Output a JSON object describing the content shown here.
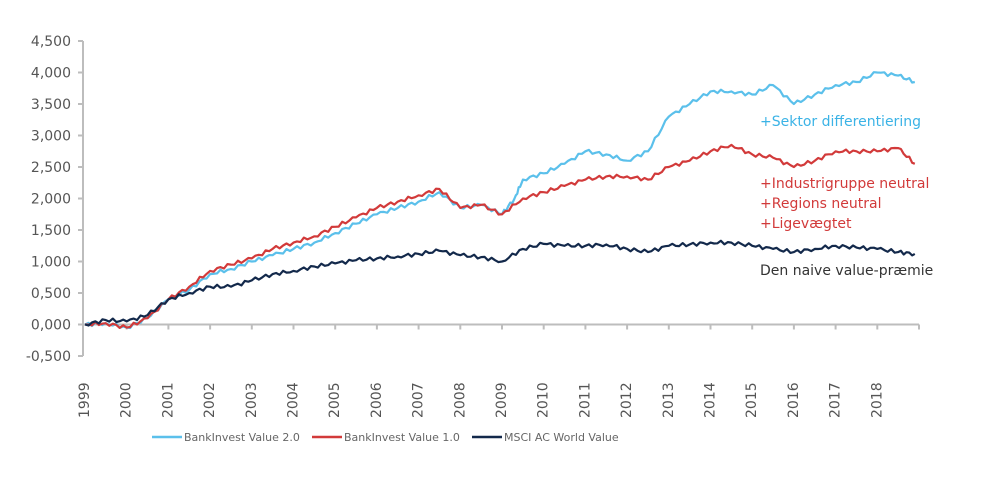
{
  "chart_data": {
    "type": "line",
    "title": "",
    "xlabel": "",
    "ylabel": "",
    "ylim": [
      -0.5,
      4.5
    ],
    "xlim": [
      1999,
      2019
    ],
    "grid": false,
    "legend_position": "bottom",
    "y_ticks": [
      "-0,500",
      "0,000",
      "0,500",
      "1,000",
      "1,500",
      "2,000",
      "2,500",
      "3,000",
      "3,500",
      "4,000",
      "4,500"
    ],
    "y_tick_values": [
      -0.5,
      0,
      0.5,
      1,
      1.5,
      2,
      2.5,
      3,
      3.5,
      4,
      4.5
    ],
    "x_ticks": [
      "1999",
      "2000",
      "2001",
      "2002",
      "2003",
      "2004",
      "2005",
      "2006",
      "2007",
      "2008",
      "2009",
      "2010",
      "2011",
      "2012",
      "2013",
      "2014",
      "2015",
      "2016",
      "2017",
      "2018"
    ],
    "series": [
      {
        "name": "BankInvest Value 2.0",
        "color": "#5bc0eb",
        "x": [
          1999,
          1999.5,
          2000,
          2000.5,
          2001,
          2001.5,
          2002,
          2002.5,
          2003,
          2003.5,
          2004,
          2004.5,
          2005,
          2005.5,
          2006,
          2006.5,
          2007,
          2007.5,
          2008,
          2008.5,
          2009,
          2009.3,
          2009.5,
          2010,
          2010.5,
          2011,
          2011.5,
          2012,
          2012.5,
          2013,
          2013.5,
          2014,
          2014.5,
          2015,
          2015.5,
          2016,
          2016.5,
          2017,
          2017.5,
          2018,
          2018.5,
          2018.9
        ],
        "values": [
          0,
          0.02,
          -0.05,
          0.1,
          0.4,
          0.55,
          0.8,
          0.88,
          1.0,
          1.1,
          1.2,
          1.3,
          1.45,
          1.6,
          1.75,
          1.85,
          1.95,
          2.1,
          1.85,
          1.9,
          1.75,
          2.0,
          2.3,
          2.4,
          2.55,
          2.75,
          2.7,
          2.6,
          2.75,
          3.3,
          3.5,
          3.7,
          3.7,
          3.65,
          3.8,
          3.5,
          3.65,
          3.8,
          3.85,
          4.0,
          3.95,
          3.85
        ]
      },
      {
        "name": "BankInvest Value 1.0",
        "color": "#d23a3a",
        "x": [
          1999,
          1999.5,
          2000,
          2000.5,
          2001,
          2001.5,
          2002,
          2002.5,
          2003,
          2003.5,
          2004,
          2004.5,
          2005,
          2005.5,
          2006,
          2006.5,
          2007,
          2007.5,
          2008,
          2008.5,
          2009,
          2009.5,
          2010,
          2010.5,
          2011,
          2011.5,
          2012,
          2012.5,
          2013,
          2013.5,
          2014,
          2014.5,
          2015,
          2015.5,
          2016,
          2016.5,
          2017,
          2017.5,
          2018,
          2018.5,
          2018.9
        ],
        "values": [
          0,
          0.02,
          -0.05,
          0.1,
          0.4,
          0.6,
          0.85,
          0.95,
          1.05,
          1.2,
          1.3,
          1.4,
          1.55,
          1.7,
          1.85,
          1.95,
          2.05,
          2.15,
          1.85,
          1.9,
          1.75,
          2.0,
          2.1,
          2.2,
          2.3,
          2.35,
          2.35,
          2.3,
          2.5,
          2.6,
          2.75,
          2.85,
          2.7,
          2.65,
          2.5,
          2.6,
          2.75,
          2.75,
          2.75,
          2.8,
          2.55
        ]
      },
      {
        "name": "MSCI AC World Value",
        "color": "#13294b",
        "x": [
          1999,
          1999.5,
          2000,
          2000.5,
          2001,
          2001.5,
          2002,
          2002.5,
          2003,
          2003.5,
          2004,
          2004.5,
          2005,
          2005.5,
          2006,
          2006.5,
          2007,
          2007.5,
          2008,
          2008.5,
          2009,
          2009.5,
          2010,
          2010.5,
          2011,
          2011.5,
          2012,
          2012.5,
          2013,
          2013.5,
          2014,
          2014.5,
          2015,
          2015.5,
          2016,
          2016.5,
          2017,
          2017.5,
          2018,
          2018.5,
          2018.9
        ],
        "values": [
          0,
          0.07,
          0.05,
          0.15,
          0.4,
          0.5,
          0.6,
          0.6,
          0.7,
          0.8,
          0.85,
          0.92,
          0.97,
          1.02,
          1.05,
          1.08,
          1.12,
          1.17,
          1.1,
          1.07,
          1.0,
          1.2,
          1.28,
          1.25,
          1.25,
          1.27,
          1.2,
          1.15,
          1.25,
          1.27,
          1.3,
          1.3,
          1.25,
          1.2,
          1.15,
          1.2,
          1.25,
          1.22,
          1.2,
          1.15,
          1.12
        ]
      }
    ],
    "annotations": [
      {
        "text": "+Sektor differentiering",
        "color": "#3bb3e6"
      },
      {
        "text": "+Industrigruppe neutral",
        "color": "#d23a3a"
      },
      {
        "text": "+Regions neutral",
        "color": "#d23a3a"
      },
      {
        "text": "+Ligevægtet",
        "color": "#d23a3a"
      },
      {
        "text": "Den naive value-præmie",
        "color": "#333333"
      }
    ],
    "legend": [
      {
        "label": "BankInvest Value 2.0",
        "color": "#5bc0eb"
      },
      {
        "label": "BankInvest Value 1.0",
        "color": "#d23a3a"
      },
      {
        "label": "MSCI AC World Value",
        "color": "#13294b"
      }
    ]
  }
}
